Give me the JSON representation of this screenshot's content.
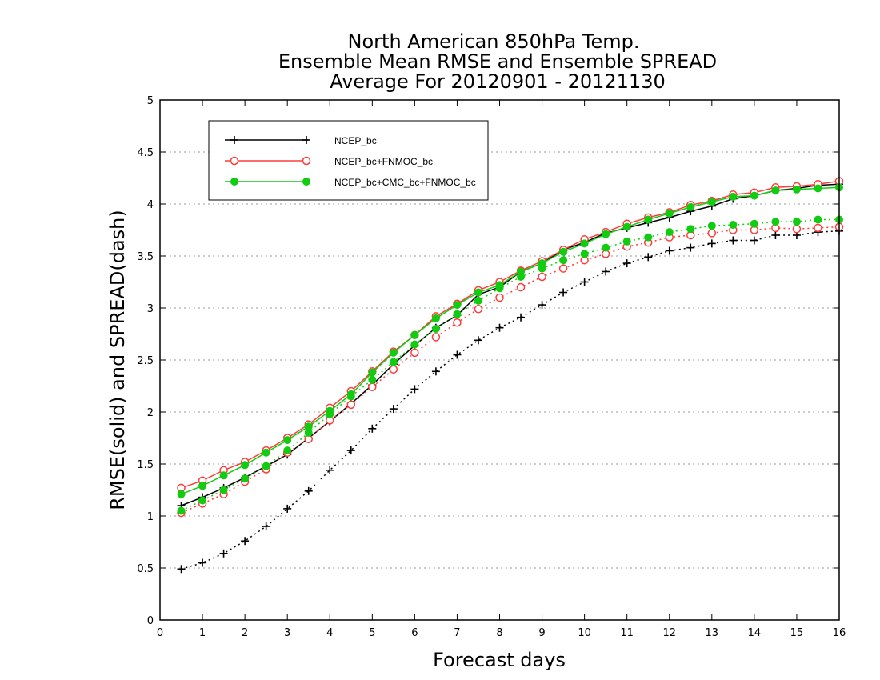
{
  "chart_data": {
    "type": "line",
    "title_lines": [
      "North American 850hPa Temp.",
      "Ensemble Mean RMSE and Ensemble SPREAD",
      "Average For 20120901 - 20121130"
    ],
    "xlabel": "Forecast days",
    "ylabel": "RMSE(solid) and SPREAD(dash)",
    "xlim": [
      0,
      16
    ],
    "ylim": [
      0,
      5
    ],
    "xticks": [
      "0",
      "1",
      "2",
      "3",
      "4",
      "5",
      "6",
      "7",
      "8",
      "9",
      "10",
      "11",
      "12",
      "13",
      "14",
      "15",
      "16"
    ],
    "yticks": [
      "0",
      "0.5",
      "1",
      "1.5",
      "2",
      "2.5",
      "3",
      "3.5",
      "4",
      "4.5",
      "5"
    ],
    "grid": "horizontal dotted",
    "legend_position": "top-left",
    "x": [
      0.5,
      1,
      1.5,
      2,
      2.5,
      3,
      3.5,
      4,
      4.5,
      5,
      5.5,
      6,
      6.5,
      7,
      7.5,
      8,
      8.5,
      9,
      9.5,
      10,
      10.5,
      11,
      11.5,
      12,
      12.5,
      13,
      13.5,
      14,
      14.5,
      15,
      15.5,
      16
    ],
    "series": [
      {
        "name": "NCEP_bc",
        "color": "#000000",
        "marker": "plus",
        "rmse": [
          1.1,
          1.18,
          1.27,
          1.37,
          1.48,
          1.59,
          1.75,
          1.91,
          2.08,
          2.26,
          2.46,
          2.64,
          2.81,
          2.93,
          3.13,
          3.2,
          3.35,
          3.43,
          3.56,
          3.63,
          3.72,
          3.77,
          3.82,
          3.87,
          3.93,
          3.98,
          4.05,
          4.08,
          4.13,
          4.15,
          4.18,
          4.19
        ],
        "spread": [
          0.49,
          0.55,
          0.64,
          0.76,
          0.9,
          1.07,
          1.24,
          1.44,
          1.63,
          1.84,
          2.03,
          2.22,
          2.39,
          2.55,
          2.69,
          2.81,
          2.91,
          3.03,
          3.15,
          3.25,
          3.35,
          3.43,
          3.49,
          3.55,
          3.58,
          3.62,
          3.65,
          3.65,
          3.7,
          3.7,
          3.73,
          3.74
        ]
      },
      {
        "name": "NCEP_bc+FNMOC_bc",
        "color": "#ff3b3b",
        "marker": "open-circle",
        "rmse": [
          1.27,
          1.34,
          1.44,
          1.52,
          1.63,
          1.75,
          1.88,
          2.04,
          2.2,
          2.39,
          2.58,
          2.74,
          2.92,
          3.04,
          3.17,
          3.25,
          3.36,
          3.45,
          3.56,
          3.66,
          3.73,
          3.81,
          3.87,
          3.92,
          3.99,
          4.03,
          4.09,
          4.11,
          4.16,
          4.17,
          4.19,
          4.22
        ],
        "spread": [
          1.03,
          1.12,
          1.21,
          1.33,
          1.45,
          1.61,
          1.74,
          1.92,
          2.07,
          2.24,
          2.41,
          2.57,
          2.72,
          2.86,
          2.99,
          3.1,
          3.2,
          3.3,
          3.38,
          3.46,
          3.52,
          3.59,
          3.63,
          3.68,
          3.7,
          3.72,
          3.75,
          3.75,
          3.77,
          3.76,
          3.77,
          3.78
        ]
      },
      {
        "name": "NCEP_bc+CMC_bc+FNMOC_bc",
        "color": "#11cc11",
        "marker": "filled-circle",
        "rmse": [
          1.21,
          1.29,
          1.39,
          1.49,
          1.61,
          1.73,
          1.86,
          2.01,
          2.17,
          2.38,
          2.57,
          2.74,
          2.9,
          3.03,
          3.15,
          3.22,
          3.35,
          3.43,
          3.54,
          3.62,
          3.71,
          3.78,
          3.85,
          3.91,
          3.97,
          4.02,
          4.07,
          4.08,
          4.13,
          4.14,
          4.15,
          4.16
        ],
        "spread": [
          1.05,
          1.15,
          1.25,
          1.36,
          1.48,
          1.63,
          1.8,
          1.98,
          2.15,
          2.31,
          2.48,
          2.65,
          2.8,
          2.94,
          3.07,
          3.19,
          3.3,
          3.38,
          3.46,
          3.52,
          3.58,
          3.64,
          3.68,
          3.73,
          3.76,
          3.79,
          3.8,
          3.81,
          3.83,
          3.83,
          3.85,
          3.85
        ]
      }
    ]
  }
}
